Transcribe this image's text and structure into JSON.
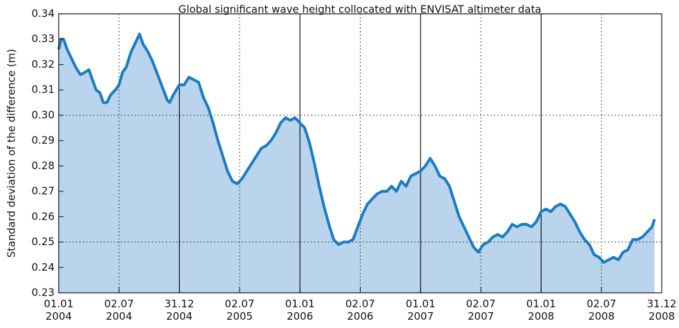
{
  "chart_data": {
    "type": "area-line",
    "title": "Global significant wave height collocated with ENVISAT altimeter data",
    "ylabel": "Standard deviation of the difference (m)",
    "xlim": [
      2004,
      2009
    ],
    "ylim": [
      0.23,
      0.34
    ],
    "xticks": [
      {
        "value": 2004,
        "label": "01.01 2004"
      },
      {
        "value": 2004.5,
        "label": "02.07 2004"
      },
      {
        "value": 2005,
        "label": "31.12 2004"
      },
      {
        "value": 2005.5,
        "label": "02.07 2005"
      },
      {
        "value": 2006,
        "label": "01.01 2006"
      },
      {
        "value": 2006.5,
        "label": "02.07 2006"
      },
      {
        "value": 2007,
        "label": "01.01 2007"
      },
      {
        "value": 2007.5,
        "label": "02.07 2007"
      },
      {
        "value": 2008,
        "label": "01.01 2008"
      },
      {
        "value": 2008.5,
        "label": "02.07 2008"
      },
      {
        "value": 2009,
        "label": "31.12 2008"
      }
    ],
    "yticks": [
      0.23,
      0.24,
      0.25,
      0.26,
      0.27,
      0.28,
      0.29,
      {
        "value": 0.3,
        "label": "0.30"
      },
      0.31,
      0.32,
      0.33,
      0.34
    ],
    "xgrid": true,
    "ygrid_values": [
      0.25,
      0.3
    ],
    "color": "#1a7cc1",
    "fill": "#b9d4ec",
    "x": [
      2004.0,
      2004.02,
      2004.04,
      2004.07,
      2004.1,
      2004.14,
      2004.18,
      2004.22,
      2004.25,
      2004.28,
      2004.31,
      2004.34,
      2004.37,
      2004.4,
      2004.43,
      2004.47,
      2004.5,
      2004.53,
      2004.56,
      2004.6,
      2004.64,
      2004.67,
      2004.7,
      2004.74,
      2004.78,
      2004.82,
      2004.86,
      2004.9,
      2004.92,
      2004.95,
      2005.0,
      2005.04,
      2005.08,
      2005.12,
      2005.16,
      2005.2,
      2005.24,
      2005.28,
      2005.32,
      2005.36,
      2005.4,
      2005.44,
      2005.48,
      2005.52,
      2005.56,
      2005.6,
      2005.64,
      2005.68,
      2005.72,
      2005.76,
      2005.8,
      2005.84,
      2005.88,
      2005.92,
      2005.96,
      2006.0,
      2006.04,
      2006.08,
      2006.12,
      2006.16,
      2006.2,
      2006.24,
      2006.28,
      2006.32,
      2006.36,
      2006.4,
      2006.44,
      2006.48,
      2006.52,
      2006.56,
      2006.6,
      2006.64,
      2006.68,
      2006.72,
      2006.76,
      2006.8,
      2006.84,
      2006.88,
      2006.92,
      2006.96,
      2007.0,
      2007.04,
      2007.08,
      2007.12,
      2007.16,
      2007.2,
      2007.24,
      2007.28,
      2007.32,
      2007.36,
      2007.4,
      2007.44,
      2007.48,
      2007.52,
      2007.56,
      2007.6,
      2007.64,
      2007.68,
      2007.72,
      2007.76,
      2007.8,
      2007.84,
      2007.88,
      2007.92,
      2007.96,
      2008.0,
      2008.04,
      2008.08,
      2008.12,
      2008.16,
      2008.2,
      2008.24,
      2008.28,
      2008.32,
      2008.36,
      2008.4,
      2008.44,
      2008.48,
      2008.52,
      2008.56,
      2008.6,
      2008.64,
      2008.68,
      2008.72,
      2008.76,
      2008.8,
      2008.84,
      2008.88,
      2008.92,
      2008.94
    ],
    "values": [
      0.326,
      0.33,
      0.33,
      0.326,
      0.323,
      0.319,
      0.316,
      0.317,
      0.318,
      0.314,
      0.31,
      0.309,
      0.305,
      0.305,
      0.308,
      0.31,
      0.312,
      0.317,
      0.319,
      0.325,
      0.329,
      0.332,
      0.328,
      0.325,
      0.321,
      0.316,
      0.311,
      0.306,
      0.305,
      0.308,
      0.312,
      0.312,
      0.315,
      0.314,
      0.313,
      0.307,
      0.303,
      0.297,
      0.29,
      0.284,
      0.278,
      0.274,
      0.273,
      0.275,
      0.278,
      0.281,
      0.284,
      0.287,
      0.288,
      0.29,
      0.293,
      0.297,
      0.299,
      0.298,
      0.299,
      0.297,
      0.295,
      0.289,
      0.281,
      0.272,
      0.264,
      0.257,
      0.251,
      0.249,
      0.25,
      0.25,
      0.251,
      0.256,
      0.261,
      0.265,
      0.267,
      0.269,
      0.27,
      0.27,
      0.272,
      0.27,
      0.274,
      0.272,
      0.276,
      0.277,
      0.278,
      0.28,
      0.283,
      0.28,
      0.276,
      0.275,
      0.272,
      0.266,
      0.26,
      0.256,
      0.252,
      0.248,
      0.246,
      0.249,
      0.25,
      0.252,
      0.253,
      0.252,
      0.254,
      0.257,
      0.256,
      0.257,
      0.257,
      0.256,
      0.258,
      0.262,
      0.263,
      0.262,
      0.264,
      0.265,
      0.264,
      0.261,
      0.258,
      0.254,
      0.251,
      0.249,
      0.245,
      0.244,
      0.242,
      0.243,
      0.244,
      0.243,
      0.246,
      0.247,
      0.251,
      0.251,
      0.252,
      0.254,
      0.256,
      0.259
    ]
  }
}
